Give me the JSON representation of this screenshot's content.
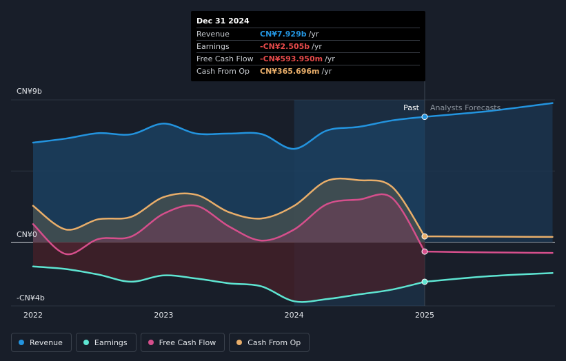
{
  "chart_data": {
    "type": "area",
    "currency_unit": "CN¥ billions",
    "x_ticks": [
      "2022",
      "2023",
      "2024",
      "2025"
    ],
    "y_labels": [
      {
        "label": "CN¥9b",
        "value": 9
      },
      {
        "label": "CN¥0",
        "value": 0
      },
      {
        "label": "-CN¥4b",
        "value": -4
      }
    ],
    "ylim": [
      -4,
      9
    ],
    "xlim": [
      2021.85,
      2025.98
    ],
    "past_label": "Past",
    "forecast_label": "Analysts Forecasts",
    "past_end": 2025.0,
    "highlight_start": 2024.0,
    "series": [
      {
        "name": "Revenue",
        "color": "#2394df",
        "points": [
          [
            2022.0,
            6.3
          ],
          [
            2022.25,
            6.55
          ],
          [
            2022.5,
            6.9
          ],
          [
            2022.75,
            6.82
          ],
          [
            2023.0,
            7.5
          ],
          [
            2023.25,
            6.87
          ],
          [
            2023.5,
            6.87
          ],
          [
            2023.75,
            6.84
          ],
          [
            2024.0,
            5.9
          ],
          [
            2024.25,
            7.06
          ],
          [
            2024.5,
            7.3
          ],
          [
            2024.75,
            7.7
          ],
          [
            2025.0,
            7.93
          ]
        ],
        "forecast": [
          [
            2025.0,
            7.93
          ],
          [
            2025.5,
            8.3
          ],
          [
            2025.98,
            8.8
          ]
        ]
      },
      {
        "name": "Earnings",
        "color": "#5ee5d2",
        "points": [
          [
            2022.0,
            -1.54
          ],
          [
            2022.25,
            -1.7
          ],
          [
            2022.5,
            -2.05
          ],
          [
            2022.75,
            -2.5
          ],
          [
            2023.0,
            -2.1
          ],
          [
            2023.25,
            -2.3
          ],
          [
            2023.5,
            -2.6
          ],
          [
            2023.75,
            -2.8
          ],
          [
            2024.0,
            -3.74
          ],
          [
            2024.25,
            -3.6
          ],
          [
            2024.5,
            -3.3
          ],
          [
            2024.75,
            -3.0
          ],
          [
            2025.0,
            -2.505
          ]
        ],
        "forecast": [
          [
            2025.0,
            -2.505
          ],
          [
            2025.5,
            -2.15
          ],
          [
            2025.98,
            -1.95
          ]
        ]
      },
      {
        "name": "Free Cash Flow",
        "color": "#d64f8c",
        "points": [
          [
            2022.0,
            1.14
          ],
          [
            2022.25,
            -0.75
          ],
          [
            2022.5,
            0.2
          ],
          [
            2022.75,
            0.35
          ],
          [
            2023.0,
            1.8
          ],
          [
            2023.25,
            2.3
          ],
          [
            2023.5,
            1.0
          ],
          [
            2023.75,
            0.1
          ],
          [
            2024.0,
            0.8
          ],
          [
            2024.25,
            2.4
          ],
          [
            2024.5,
            2.7
          ],
          [
            2024.75,
            2.8
          ],
          [
            2025.0,
            -0.594
          ]
        ],
        "forecast": [
          [
            2025.0,
            -0.594
          ],
          [
            2025.5,
            -0.65
          ],
          [
            2025.98,
            -0.68
          ]
        ]
      },
      {
        "name": "Cash From Op",
        "color": "#e9ae6a",
        "points": [
          [
            2022.0,
            2.3
          ],
          [
            2022.25,
            0.8
          ],
          [
            2022.5,
            1.45
          ],
          [
            2022.75,
            1.6
          ],
          [
            2023.0,
            2.85
          ],
          [
            2023.25,
            3.0
          ],
          [
            2023.5,
            1.9
          ],
          [
            2023.75,
            1.5
          ],
          [
            2024.0,
            2.3
          ],
          [
            2024.25,
            3.88
          ],
          [
            2024.5,
            3.92
          ],
          [
            2024.75,
            3.5
          ],
          [
            2025.0,
            0.366
          ]
        ],
        "forecast": [
          [
            2025.0,
            0.366
          ],
          [
            2025.5,
            0.35
          ],
          [
            2025.98,
            0.33
          ]
        ]
      }
    ]
  },
  "tooltip": {
    "date": "Dec 31 2024",
    "rows": [
      {
        "label": "Revenue",
        "value": "CN¥7.929b",
        "unit": "/yr",
        "color": "#2394df"
      },
      {
        "label": "Earnings",
        "value": "-CN¥2.505b",
        "unit": "/yr",
        "color": "#e64a4a"
      },
      {
        "label": "Free Cash Flow",
        "value": "-CN¥593.950m",
        "unit": "/yr",
        "color": "#e64a4a"
      },
      {
        "label": "Cash From Op",
        "value": "CN¥365.696m",
        "unit": "/yr",
        "color": "#e9ae6a"
      }
    ]
  },
  "legend": [
    {
      "label": "Revenue",
      "color": "#2394df"
    },
    {
      "label": "Earnings",
      "color": "#5ee5d2"
    },
    {
      "label": "Free Cash Flow",
      "color": "#d64f8c"
    },
    {
      "label": "Cash From Op",
      "color": "#e9ae6a"
    }
  ]
}
